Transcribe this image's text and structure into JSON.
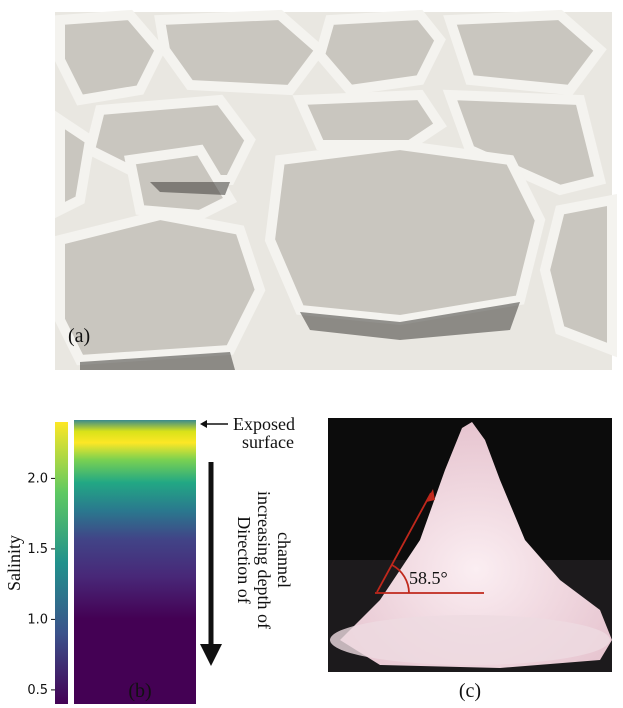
{
  "panels": [
    {
      "label": "(a)"
    },
    {
      "label": "(b)",
      "colorbar": {
        "title": "Salinity",
        "lim": [
          0.4,
          2.4
        ],
        "ticks": [
          {
            "value": 0.5,
            "label": "0.5"
          },
          {
            "value": 1.0,
            "label": "1.0"
          },
          {
            "value": 1.5,
            "label": "1.5"
          },
          {
            "value": 2.0,
            "label": "2.0"
          }
        ]
      },
      "surface_note": [
        "Exposed",
        "surface"
      ],
      "depth_note": [
        "Direction of",
        "increasing depth of",
        "channel"
      ]
    },
    {
      "label": "(c)",
      "angle_label": "58.5°"
    }
  ]
}
